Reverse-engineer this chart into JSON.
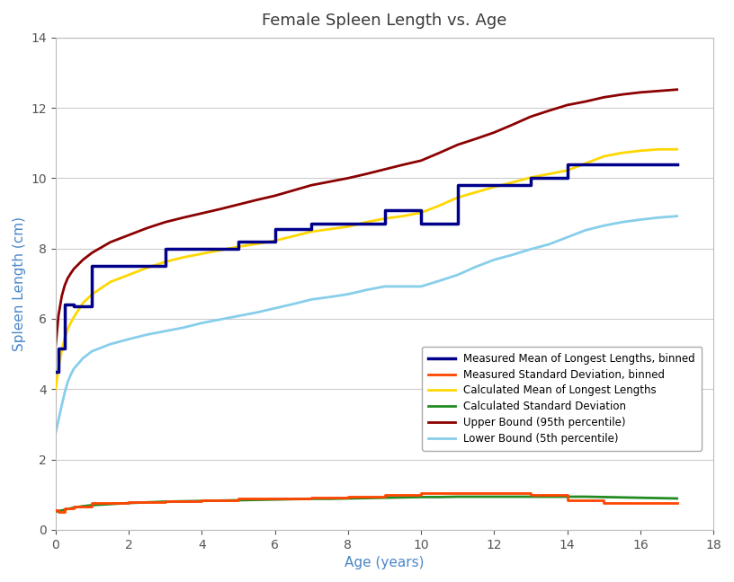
{
  "title": "Female Spleen Length vs. Age",
  "xlabel": "Age (years)",
  "ylabel": "Spleen Length (cm)",
  "xlim": [
    0,
    18
  ],
  "ylim": [
    0,
    14
  ],
  "xticks": [
    0,
    2,
    4,
    6,
    8,
    10,
    12,
    14,
    16,
    18
  ],
  "yticks": [
    0,
    2,
    4,
    6,
    8,
    10,
    12,
    14
  ],
  "background_color": "#ffffff",
  "title_color": "#3a3a3a",
  "axis_label_color": "#4a86c8",
  "measured_mean_binned": {
    "x": [
      0.0,
      0.08,
      0.08,
      0.25,
      0.25,
      0.5,
      0.5,
      1.0,
      1.0,
      2.0,
      2.0,
      3.0,
      3.0,
      4.0,
      4.0,
      5.0,
      5.0,
      6.0,
      6.0,
      7.0,
      7.0,
      8.0,
      8.0,
      9.0,
      9.0,
      10.0,
      10.0,
      11.0,
      11.0,
      12.0,
      12.0,
      13.0,
      13.0,
      14.0,
      14.0,
      15.0,
      15.0,
      16.0,
      16.0,
      17.0
    ],
    "y": [
      4.5,
      4.5,
      5.15,
      5.15,
      6.4,
      6.4,
      6.35,
      6.35,
      7.5,
      7.5,
      7.5,
      7.5,
      8.0,
      8.0,
      8.0,
      8.0,
      8.2,
      8.2,
      8.55,
      8.55,
      8.7,
      8.7,
      8.7,
      8.7,
      9.1,
      9.1,
      8.7,
      8.7,
      9.8,
      9.8,
      9.8,
      9.8,
      10.0,
      10.0,
      10.4,
      10.4,
      10.4,
      10.4,
      10.4,
      10.4
    ],
    "color": "#00008b",
    "linewidth": 2.5,
    "label": "Measured Mean of Longest Lengths, binned"
  },
  "measured_std_binned": {
    "x": [
      0.0,
      0.08,
      0.08,
      0.25,
      0.25,
      0.5,
      0.5,
      1.0,
      1.0,
      2.0,
      2.0,
      3.0,
      3.0,
      4.0,
      4.0,
      5.0,
      5.0,
      6.0,
      6.0,
      7.0,
      7.0,
      8.0,
      8.0,
      9.0,
      9.0,
      10.0,
      10.0,
      11.0,
      11.0,
      12.0,
      12.0,
      13.0,
      13.0,
      14.0,
      14.0,
      15.0,
      15.0,
      16.0,
      16.0,
      17.0
    ],
    "y": [
      0.55,
      0.55,
      0.5,
      0.5,
      0.6,
      0.6,
      0.65,
      0.65,
      0.75,
      0.75,
      0.78,
      0.78,
      0.82,
      0.82,
      0.85,
      0.85,
      0.88,
      0.88,
      0.9,
      0.9,
      0.92,
      0.92,
      0.95,
      0.95,
      1.0,
      1.0,
      1.05,
      1.05,
      1.05,
      1.05,
      1.05,
      1.05,
      1.0,
      1.0,
      0.85,
      0.85,
      0.75,
      0.75,
      0.75,
      0.75
    ],
    "color": "#ff4500",
    "linewidth": 2.0,
    "label": "Measured Standard Deviation, binned"
  },
  "calc_mean": {
    "x": [
      0.0,
      0.08,
      0.17,
      0.25,
      0.33,
      0.42,
      0.5,
      0.75,
      1.0,
      1.5,
      2.0,
      2.5,
      3.0,
      3.5,
      4.0,
      4.5,
      5.0,
      5.5,
      6.0,
      6.5,
      7.0,
      7.5,
      8.0,
      8.5,
      9.0,
      9.5,
      10.0,
      10.5,
      11.0,
      11.5,
      12.0,
      12.5,
      13.0,
      13.5,
      14.0,
      14.5,
      15.0,
      15.5,
      16.0,
      16.5,
      17.0
    ],
    "y": [
      4.0,
      4.6,
      5.1,
      5.45,
      5.7,
      5.9,
      6.05,
      6.45,
      6.7,
      7.05,
      7.25,
      7.45,
      7.62,
      7.75,
      7.85,
      7.95,
      8.05,
      8.13,
      8.22,
      8.35,
      8.48,
      8.55,
      8.62,
      8.75,
      8.85,
      8.92,
      9.02,
      9.22,
      9.45,
      9.6,
      9.75,
      9.88,
      10.02,
      10.12,
      10.22,
      10.42,
      10.62,
      10.72,
      10.78,
      10.82,
      10.82
    ],
    "color": "#ffd700",
    "linewidth": 2.0,
    "label": "Calculated Mean of Longest Lengths"
  },
  "calc_std": {
    "x": [
      0.0,
      0.08,
      0.17,
      0.25,
      0.33,
      0.42,
      0.5,
      0.75,
      1.0,
      1.5,
      2.0,
      2.5,
      3.0,
      3.5,
      4.0,
      4.5,
      5.0,
      5.5,
      6.0,
      6.5,
      7.0,
      7.5,
      8.0,
      8.5,
      9.0,
      9.5,
      10.0,
      10.5,
      11.0,
      11.5,
      12.0,
      12.5,
      13.0,
      13.5,
      14.0,
      14.5,
      15.0,
      15.5,
      16.0,
      16.5,
      17.0
    ],
    "y": [
      0.52,
      0.53,
      0.55,
      0.57,
      0.59,
      0.61,
      0.63,
      0.67,
      0.7,
      0.73,
      0.76,
      0.78,
      0.8,
      0.81,
      0.82,
      0.83,
      0.84,
      0.85,
      0.86,
      0.87,
      0.88,
      0.88,
      0.89,
      0.9,
      0.91,
      0.92,
      0.93,
      0.93,
      0.94,
      0.94,
      0.94,
      0.94,
      0.94,
      0.94,
      0.94,
      0.94,
      0.93,
      0.92,
      0.91,
      0.9,
      0.89
    ],
    "color": "#228b22",
    "linewidth": 2.0,
    "label": "Calculated Standard Deviation"
  },
  "upper_bound": {
    "x": [
      0.0,
      0.08,
      0.17,
      0.25,
      0.33,
      0.42,
      0.5,
      0.75,
      1.0,
      1.5,
      2.0,
      2.5,
      3.0,
      3.5,
      4.0,
      4.5,
      5.0,
      5.5,
      6.0,
      6.5,
      7.0,
      7.5,
      8.0,
      8.5,
      9.0,
      9.5,
      10.0,
      10.5,
      11.0,
      11.5,
      12.0,
      12.5,
      13.0,
      13.5,
      14.0,
      14.5,
      15.0,
      15.5,
      16.0,
      16.5,
      17.0
    ],
    "y": [
      5.22,
      6.1,
      6.65,
      6.95,
      7.15,
      7.3,
      7.42,
      7.68,
      7.88,
      8.18,
      8.38,
      8.58,
      8.75,
      8.88,
      9.0,
      9.12,
      9.25,
      9.38,
      9.5,
      9.65,
      9.8,
      9.9,
      10.0,
      10.12,
      10.25,
      10.38,
      10.5,
      10.72,
      10.95,
      11.12,
      11.3,
      11.52,
      11.75,
      11.92,
      12.08,
      12.18,
      12.3,
      12.38,
      12.44,
      12.48,
      12.52
    ],
    "color": "#8b0000",
    "linewidth": 2.0,
    "label": "Upper Bound (95th percentile)"
  },
  "lower_bound": {
    "x": [
      0.0,
      0.08,
      0.17,
      0.25,
      0.33,
      0.42,
      0.5,
      0.75,
      1.0,
      1.5,
      2.0,
      2.5,
      3.0,
      3.5,
      4.0,
      4.5,
      5.0,
      5.5,
      6.0,
      6.5,
      7.0,
      7.5,
      8.0,
      8.5,
      9.0,
      9.5,
      10.0,
      10.5,
      11.0,
      11.5,
      12.0,
      12.5,
      13.0,
      13.5,
      14.0,
      14.5,
      15.0,
      15.5,
      16.0,
      16.5,
      17.0
    ],
    "y": [
      2.75,
      3.12,
      3.55,
      3.9,
      4.2,
      4.42,
      4.58,
      4.88,
      5.08,
      5.28,
      5.42,
      5.55,
      5.65,
      5.75,
      5.88,
      5.98,
      6.08,
      6.18,
      6.3,
      6.42,
      6.55,
      6.62,
      6.7,
      6.82,
      6.92,
      6.92,
      6.92,
      7.08,
      7.25,
      7.48,
      7.68,
      7.82,
      7.98,
      8.12,
      8.32,
      8.52,
      8.65,
      8.75,
      8.82,
      8.88,
      8.92
    ],
    "color": "#87ceeb",
    "linewidth": 2.0,
    "label": "Lower Bound (5th percentile)"
  }
}
